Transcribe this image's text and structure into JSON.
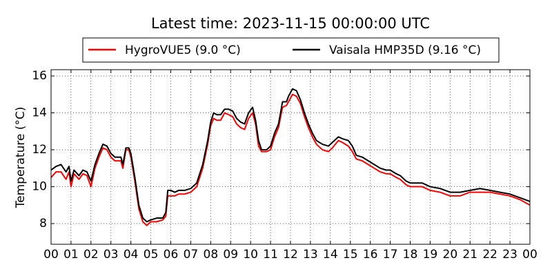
{
  "chart_data": {
    "type": "line",
    "title": "Latest time: 2023-11-15 00:00:00 UTC",
    "y_label": "Temperature (°C)",
    "legend": "top",
    "grid": true,
    "xlim": [
      0,
      24
    ],
    "ylim": [
      6.88,
      16.34
    ],
    "xticks": [
      {
        "value": 0,
        "label": "00"
      },
      {
        "value": 1,
        "label": "01"
      },
      {
        "value": 2,
        "label": "02"
      },
      {
        "value": 3,
        "label": "03"
      },
      {
        "value": 4,
        "label": "04"
      },
      {
        "value": 5,
        "label": "05"
      },
      {
        "value": 6,
        "label": "06"
      },
      {
        "value": 7,
        "label": "07"
      },
      {
        "value": 8,
        "label": "08"
      },
      {
        "value": 9,
        "label": "09"
      },
      {
        "value": 10,
        "label": "10"
      },
      {
        "value": 11,
        "label": "11"
      },
      {
        "value": 12,
        "label": "12"
      },
      {
        "value": 13,
        "label": "13"
      },
      {
        "value": 14,
        "label": "14"
      },
      {
        "value": 15,
        "label": "15"
      },
      {
        "value": 16,
        "label": "16"
      },
      {
        "value": 17,
        "label": "17"
      },
      {
        "value": 18,
        "label": "18"
      },
      {
        "value": 19,
        "label": "19"
      },
      {
        "value": 20,
        "label": "20"
      },
      {
        "value": 21,
        "label": "21"
      },
      {
        "value": 22,
        "label": "22"
      },
      {
        "value": 23,
        "label": "23"
      },
      {
        "value": 24,
        "label": "00"
      }
    ],
    "yticks": [
      8,
      10,
      12,
      14,
      16
    ],
    "x": [
      0,
      0.25,
      0.5,
      0.75,
      0.9,
      1.0,
      1.15,
      1.4,
      1.6,
      1.8,
      2.0,
      2.2,
      2.4,
      2.6,
      2.8,
      3.0,
      3.2,
      3.5,
      3.6,
      3.75,
      3.9,
      4.0,
      4.2,
      4.4,
      4.6,
      4.8,
      5.0,
      5.3,
      5.6,
      5.75,
      5.85,
      6.0,
      6.2,
      6.4,
      6.7,
      7.0,
      7.3,
      7.6,
      7.85,
      8.0,
      8.15,
      8.3,
      8.5,
      8.7,
      8.9,
      9.1,
      9.3,
      9.5,
      9.7,
      9.9,
      10.1,
      10.25,
      10.4,
      10.55,
      10.8,
      11.0,
      11.2,
      11.4,
      11.6,
      11.8,
      11.9,
      12.1,
      12.3,
      12.5,
      12.7,
      12.9,
      13.1,
      13.3,
      13.6,
      13.9,
      14.1,
      14.4,
      14.6,
      14.9,
      15.1,
      15.3,
      15.6,
      15.9,
      16.2,
      16.5,
      16.8,
      17.0,
      17.3,
      17.5,
      17.8,
      18.0,
      18.3,
      18.6,
      19.0,
      19.5,
      20.0,
      20.5,
      21.0,
      21.5,
      22.0,
      22.5,
      23.0,
      23.5,
      24.0
    ],
    "series": [
      {
        "name": "HygroVUE5 (9.0 °C)",
        "color": "#ff0000",
        "values": [
          10.5,
          10.8,
          10.8,
          10.4,
          10.8,
          10.0,
          10.7,
          10.4,
          10.7,
          10.6,
          10.0,
          11.0,
          11.6,
          12.1,
          12.0,
          11.6,
          11.4,
          11.4,
          11.0,
          12.0,
          12.0,
          11.6,
          10.3,
          8.8,
          8.1,
          7.9,
          8.1,
          8.1,
          8.2,
          8.4,
          9.5,
          9.5,
          9.5,
          9.6,
          9.6,
          9.7,
          10.0,
          11.0,
          12.3,
          13.3,
          13.7,
          13.6,
          13.6,
          14.0,
          13.9,
          13.8,
          13.4,
          13.2,
          13.1,
          13.7,
          14.0,
          13.4,
          12.2,
          11.9,
          11.9,
          12.0,
          12.7,
          13.2,
          14.3,
          14.4,
          14.6,
          15.0,
          14.9,
          14.5,
          13.8,
          13.2,
          12.7,
          12.3,
          12.0,
          11.9,
          12.1,
          12.5,
          12.4,
          12.2,
          11.9,
          11.5,
          11.4,
          11.2,
          11.0,
          10.8,
          10.7,
          10.7,
          10.5,
          10.4,
          10.1,
          10.0,
          10.0,
          10.0,
          9.8,
          9.7,
          9.5,
          9.5,
          9.7,
          9.7,
          9.7,
          9.6,
          9.5,
          9.3,
          9.0
        ]
      },
      {
        "name": "Vaisala HMP35D (9.16 °C)",
        "color": "#000000",
        "values": [
          10.9,
          11.1,
          11.2,
          10.8,
          11.1,
          10.3,
          10.9,
          10.6,
          10.9,
          10.8,
          10.3,
          11.2,
          11.8,
          12.3,
          12.2,
          11.8,
          11.6,
          11.6,
          11.2,
          12.1,
          12.1,
          11.8,
          10.5,
          9.0,
          8.3,
          8.1,
          8.2,
          8.3,
          8.3,
          8.6,
          9.8,
          9.8,
          9.7,
          9.8,
          9.8,
          9.9,
          10.2,
          11.2,
          12.5,
          13.5,
          14.0,
          13.9,
          13.9,
          14.2,
          14.2,
          14.1,
          13.7,
          13.5,
          13.4,
          14.0,
          14.3,
          13.6,
          12.5,
          12.0,
          12.0,
          12.2,
          12.9,
          13.4,
          14.6,
          14.6,
          14.9,
          15.3,
          15.2,
          14.7,
          14.0,
          13.4,
          12.9,
          12.5,
          12.3,
          12.2,
          12.4,
          12.7,
          12.6,
          12.5,
          12.2,
          11.7,
          11.6,
          11.4,
          11.2,
          11.0,
          10.9,
          10.9,
          10.7,
          10.6,
          10.3,
          10.2,
          10.2,
          10.2,
          10.0,
          9.9,
          9.7,
          9.7,
          9.8,
          9.9,
          9.8,
          9.7,
          9.6,
          9.4,
          9.2
        ]
      }
    ]
  }
}
